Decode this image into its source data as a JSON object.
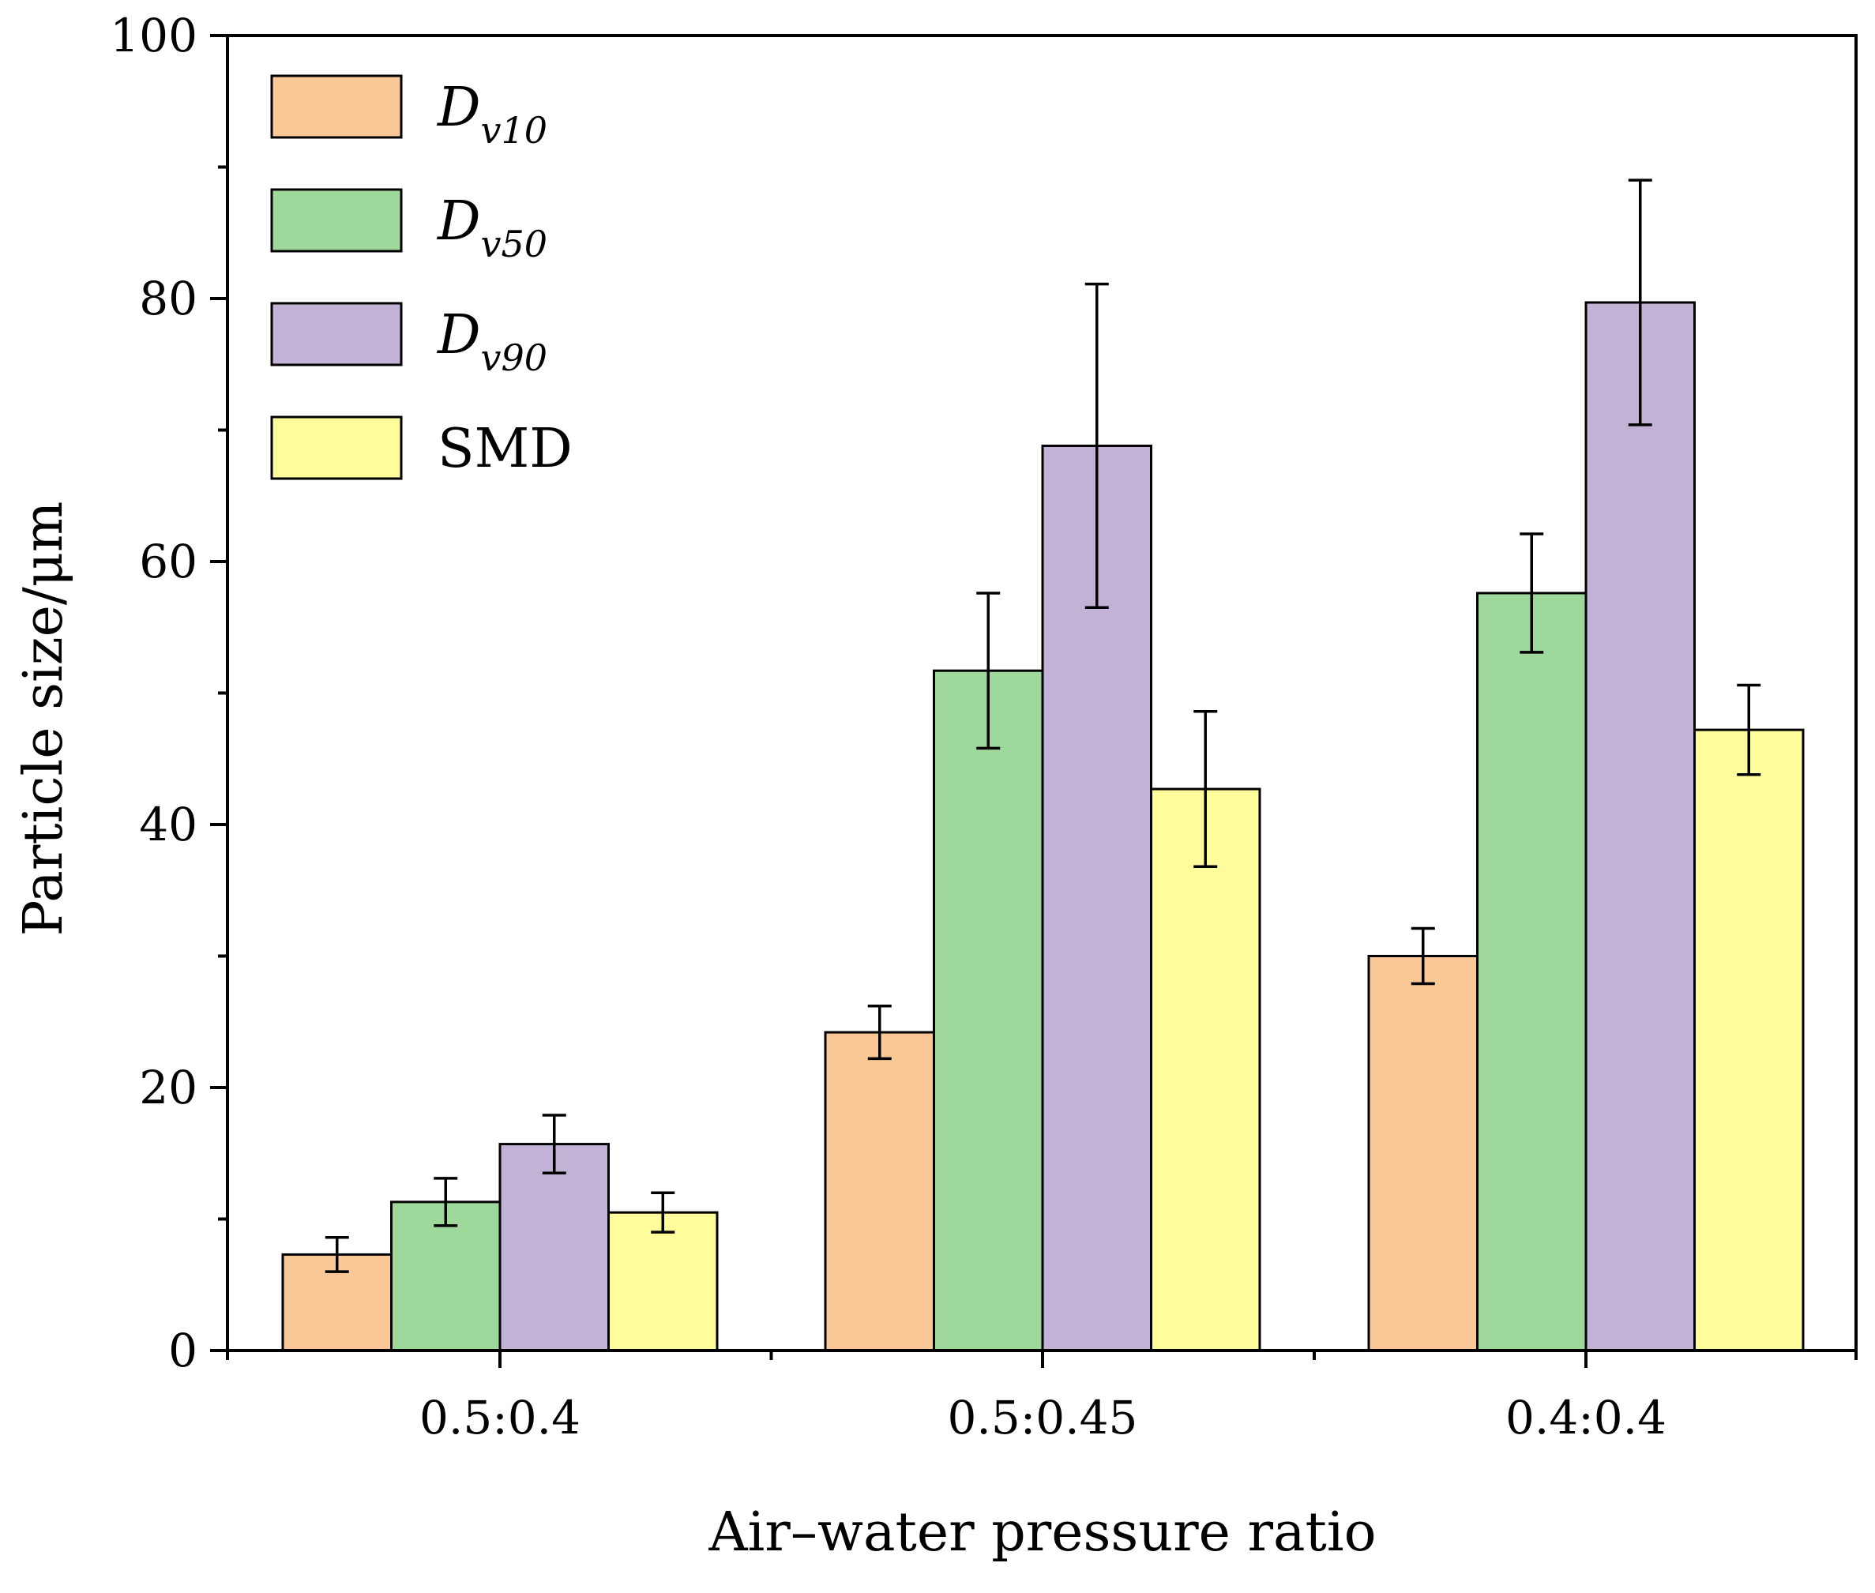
{
  "chart_data": {
    "type": "bar",
    "xlabel": "Air–water pressure ratio",
    "ylabel": "Particle size/μm",
    "ylim": [
      0,
      100
    ],
    "yticks": [
      0,
      20,
      40,
      60,
      80,
      100
    ],
    "ytick_labels": [
      "0",
      "20",
      "40",
      "60",
      "80",
      "100"
    ],
    "categories": [
      "0.5:0.4",
      "0.5:0.45",
      "0.4:0.4"
    ],
    "legend_position": "top-left",
    "series": [
      {
        "name": "Dv10",
        "label_main": "D",
        "label_sub": "v10",
        "color": "#F9C896",
        "values": [
          7.3,
          24.2,
          30.0
        ],
        "errors": [
          1.3,
          2.0,
          2.1
        ]
      },
      {
        "name": "Dv50",
        "label_main": "D",
        "label_sub": "v50",
        "color": "#9ED89A",
        "values": [
          11.3,
          51.7,
          57.6
        ],
        "errors": [
          1.8,
          5.9,
          4.5
        ]
      },
      {
        "name": "Dv90",
        "label_main": "D",
        "label_sub": "v90",
        "color": "#C2B2D6",
        "values": [
          15.7,
          68.8,
          79.7
        ],
        "errors": [
          2.2,
          12.3,
          9.3
        ]
      },
      {
        "name": "SMD",
        "label_main": "SMD",
        "label_sub": "",
        "color": "#FFFC9B",
        "values": [
          10.5,
          42.7,
          47.2
        ],
        "errors": [
          1.5,
          5.9,
          3.4
        ]
      }
    ]
  }
}
